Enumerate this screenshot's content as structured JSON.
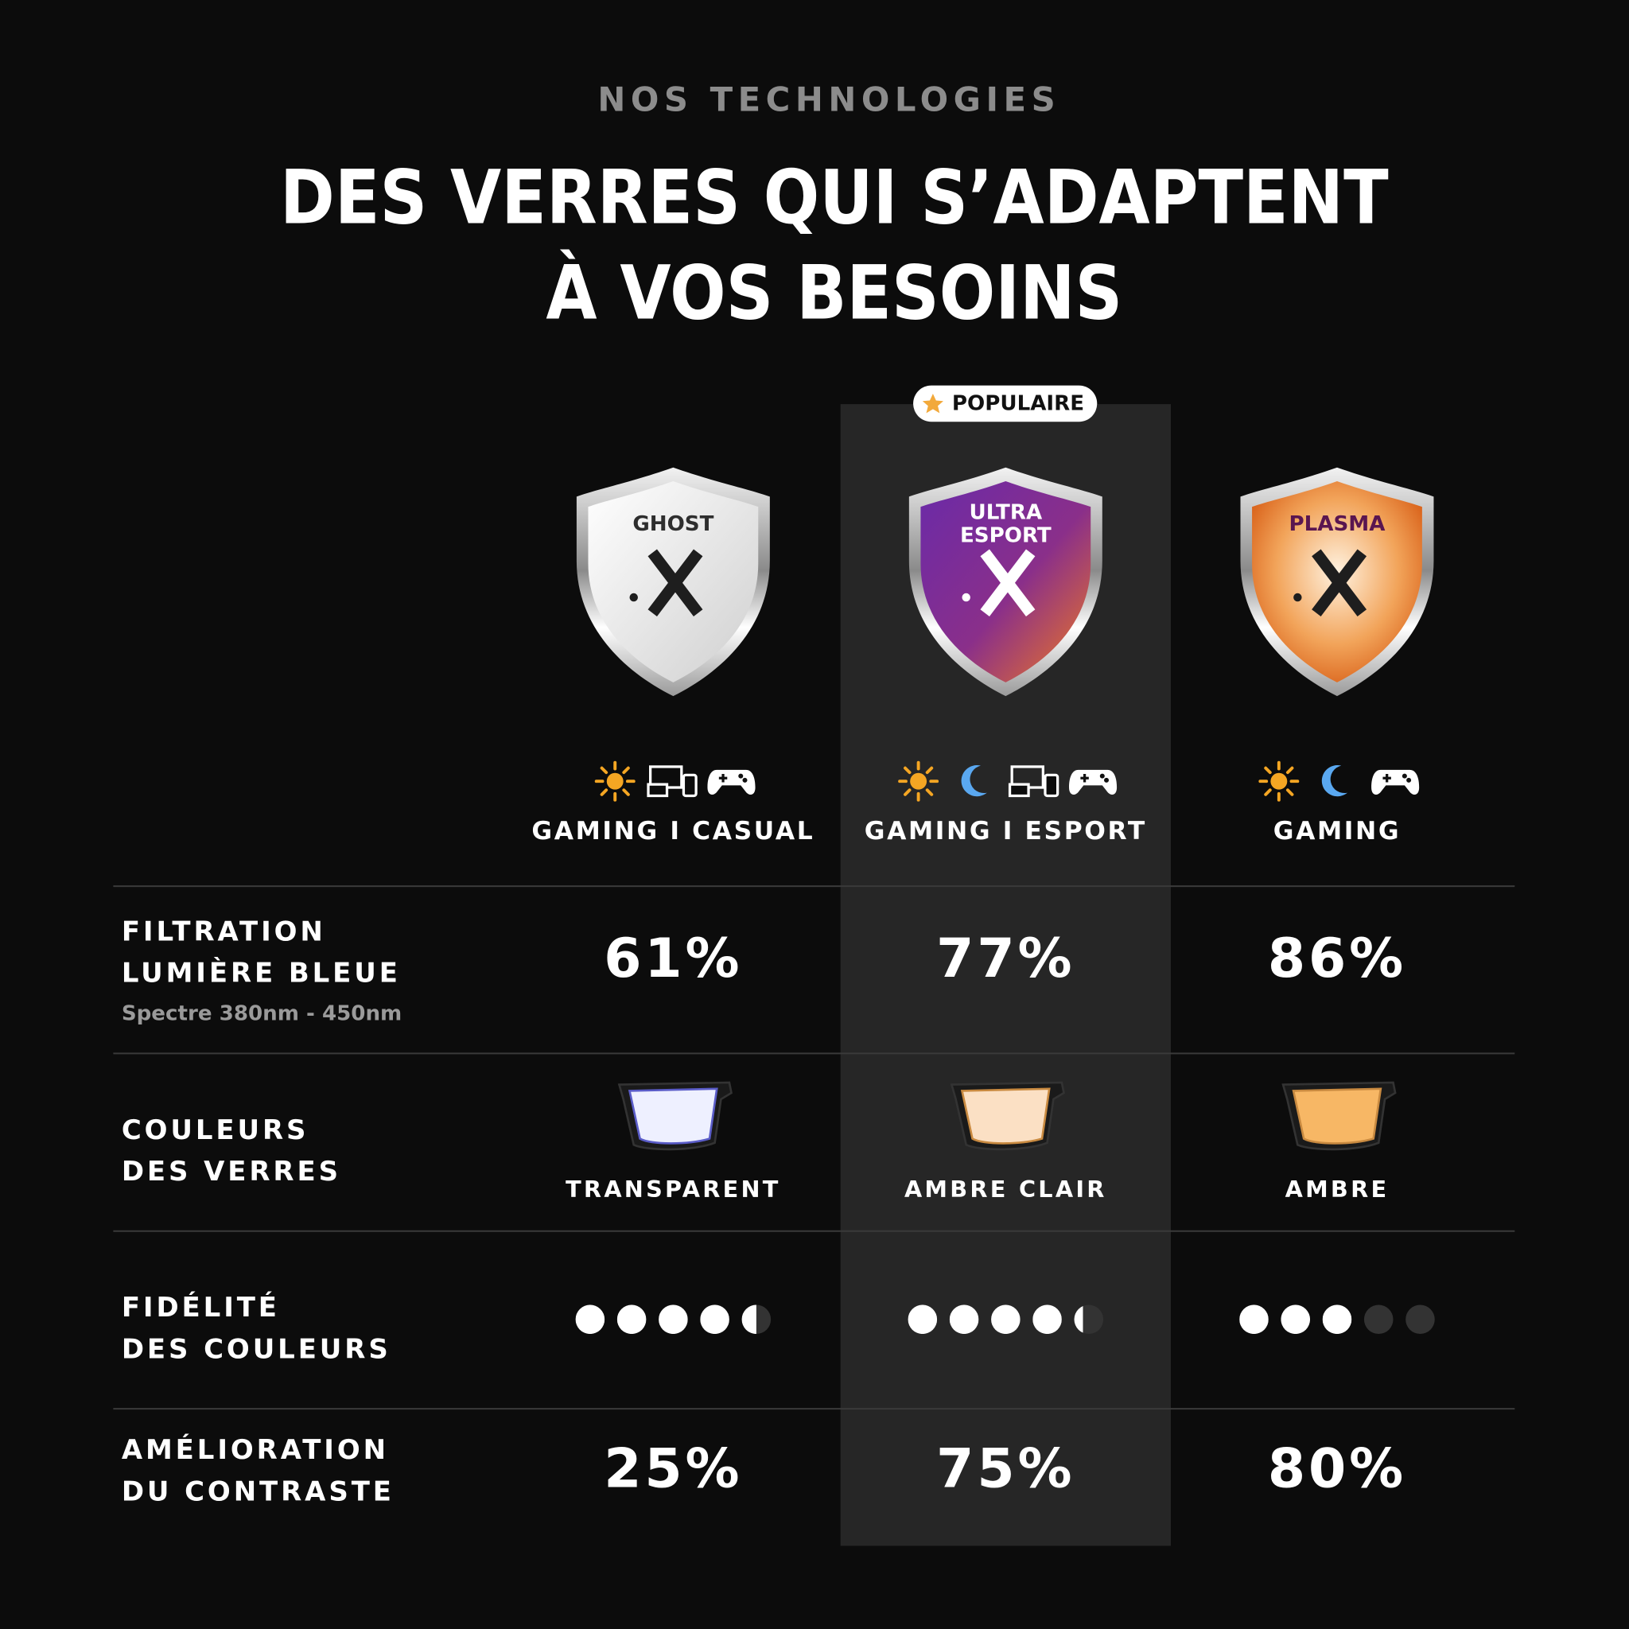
{
  "header": {
    "eyebrow": "NOS TECHNOLOGIES",
    "title": [
      "DES VERRES QUI S’ADAPTENT",
      "À VOS BESOINS"
    ]
  },
  "badge": "POPULAIRE",
  "products": [
    {
      "shield": [
        "GHOST"
      ],
      "usage": "GAMING I CASUAL"
    },
    {
      "shield": [
        "ULTRA",
        "ESPORT"
      ],
      "usage": "GAMING I ESPORT"
    },
    {
      "shield": [
        "PLASMA"
      ],
      "usage": "GAMING"
    }
  ],
  "rows": [
    {
      "label": [
        "FILTRATION",
        "LUMIÈRE BLEUE"
      ],
      "note": "Spectre 380nm - 450nm",
      "values": [
        "61%",
        "77%",
        "86%"
      ]
    },
    {
      "label": [
        "COULEURS",
        "DES VERRES"
      ],
      "values": [
        "TRANSPARENT",
        "AMBRE CLAIR",
        "AMBRE"
      ]
    },
    {
      "label": [
        "FIDÉLITÉ",
        "DES COULEURS"
      ],
      "values": [
        4.5,
        4.3,
        3
      ]
    },
    {
      "label": [
        "AMÉLIORATION",
        "DU CONTRASTE"
      ],
      "values": [
        "25%",
        "75%",
        "80%"
      ]
    }
  ]
}
